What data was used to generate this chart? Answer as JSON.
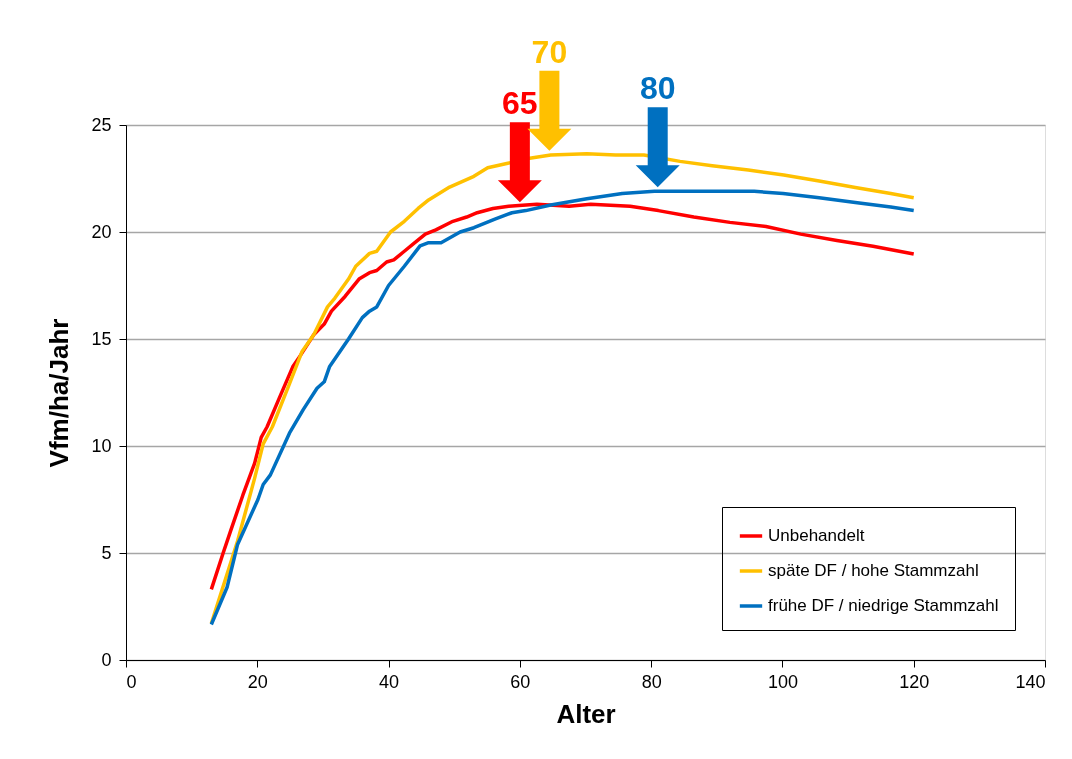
{
  "chart_data": {
    "type": "line",
    "xlabel": "Alter",
    "ylabel": "Vfm/ha/Jahr",
    "xlim": [
      0,
      140
    ],
    "xticks": [
      0,
      20,
      40,
      60,
      80,
      100,
      120,
      140
    ],
    "ylim": [
      0,
      25
    ],
    "yticks": [
      0,
      5,
      10,
      15,
      20,
      25
    ],
    "grid": "y",
    "legend": "bottom right",
    "marker": "none",
    "line_style": "solid",
    "series": [
      {
        "name": "Unbehandelt",
        "color": "#ff0000",
        "x": [
          13,
          14.8,
          15.9,
          17.8,
          19.6,
          20.6,
          21.5,
          23.3,
          25.4,
          26.5,
          28.6,
          30.2,
          31.3,
          33.4,
          35.5,
          37.1,
          38.2,
          39.7,
          40.8,
          42.4,
          44,
          45.6,
          47.2,
          49.8,
          51.9,
          53.5,
          55.9,
          58.3,
          60.4,
          62.6,
          67.5,
          70.8,
          76.8,
          81.1,
          86.5,
          92,
          97.5,
          102.8,
          108.3,
          113.8,
          120
        ],
        "values": [
          3.3,
          5,
          6,
          7.7,
          9.2,
          10.4,
          10.9,
          12.2,
          13.7,
          14.2,
          15.2,
          15.7,
          16.3,
          17,
          17.8,
          18.1,
          18.2,
          18.6,
          18.7,
          19.1,
          19.5,
          19.9,
          20.1,
          20.5,
          20.7,
          20.9,
          21.1,
          21.2,
          21.25,
          21.3,
          21.2,
          21.3,
          21.2,
          21,
          20.7,
          20.45,
          20.26,
          19.9,
          19.6,
          19.33,
          18.97
        ]
      },
      {
        "name": "späte DF / hohe Stammzahl",
        "color": "#ffc000",
        "x": [
          13,
          17,
          19.6,
          20.9,
          22.3,
          24.9,
          26.8,
          28.6,
          30.7,
          31.8,
          33.9,
          35,
          37.1,
          38.2,
          40.3,
          42.4,
          44.5,
          46.1,
          47.7,
          49.3,
          53,
          55.1,
          58,
          61.5,
          64.7,
          70.2,
          74.6,
          78.9,
          84.4,
          89.3,
          94.8,
          100.2,
          105.6,
          111.1,
          116.5,
          120
        ],
        "values": [
          1.7,
          5.56,
          8.5,
          10.1,
          10.9,
          12.9,
          14.4,
          15.2,
          16.5,
          16.9,
          17.8,
          18.4,
          19,
          19.1,
          20,
          20.5,
          21.1,
          21.5,
          21.8,
          22.1,
          22.6,
          23,
          23.2,
          23.45,
          23.6,
          23.66,
          23.6,
          23.6,
          23.3,
          23.1,
          22.9,
          22.66,
          22.38,
          22.08,
          21.8,
          21.6
        ]
      },
      {
        "name": "frühe DF / niedrige Stammzahl",
        "color": "#0070c0",
        "x": [
          13,
          15.4,
          17,
          20.1,
          20.9,
          22,
          24.9,
          27,
          29.1,
          30.2,
          31,
          33.9,
          36,
          37.1,
          38.2,
          40,
          42.4,
          44.8,
          46.1,
          48,
          50.9,
          53,
          56.2,
          58.8,
          60.9,
          64.7,
          70.2,
          75.6,
          80.5,
          86.5,
          91.9,
          95.7,
          100.1,
          105.6,
          111.1,
          116.5,
          120
        ],
        "values": [
          1.66,
          3.4,
          5.4,
          7.5,
          8.2,
          8.65,
          10.6,
          11.7,
          12.7,
          13,
          13.7,
          15,
          16,
          16.3,
          16.5,
          17.5,
          18.4,
          19.35,
          19.5,
          19.5,
          20,
          20.2,
          20.6,
          20.9,
          21,
          21.26,
          21.55,
          21.8,
          21.9,
          21.9,
          21.9,
          21.9,
          21.8,
          21.6,
          21.38,
          21.17,
          21
        ]
      }
    ],
    "annotations": [
      {
        "text": "65",
        "x": 60,
        "y": 21.3
      },
      {
        "text": "70",
        "x": 64.5,
        "y": 23.7
      },
      {
        "text": "80",
        "x": 81,
        "y": 22
      }
    ]
  }
}
